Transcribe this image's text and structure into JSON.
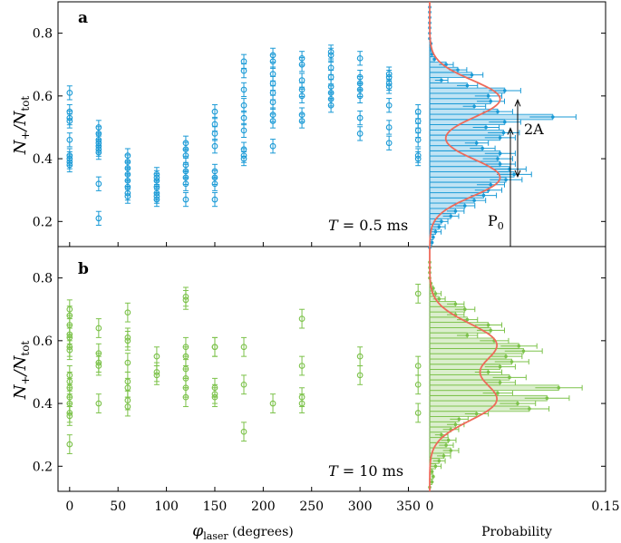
{
  "chart_data": [
    {
      "id": "a-scatter",
      "type": "scatter",
      "panel_label": "a",
      "annotation": {
        "prefix": "T",
        "text": " = 0.5 ms"
      },
      "ylabel": "N+/Ntot",
      "xlabel": "",
      "xlim": [
        -12,
        372
      ],
      "ylim": [
        0.12,
        0.9
      ],
      "yticks": [
        0.2,
        0.4,
        0.6,
        0.8
      ],
      "color": "#1a9ad6",
      "phases": [
        0,
        30,
        60,
        90,
        120,
        150,
        180,
        210,
        240,
        270,
        300,
        330,
        360
      ],
      "points": [
        [
          0,
          0.61
        ],
        [
          0,
          0.55
        ],
        [
          0,
          0.53
        ],
        [
          0,
          0.52
        ],
        [
          0,
          0.46
        ],
        [
          0,
          0.41
        ],
        [
          0,
          0.4
        ],
        [
          0,
          0.39
        ],
        [
          0,
          0.38
        ],
        [
          30,
          0.5
        ],
        [
          30,
          0.48
        ],
        [
          30,
          0.46
        ],
        [
          30,
          0.45
        ],
        [
          30,
          0.44
        ],
        [
          30,
          0.43
        ],
        [
          30,
          0.42
        ],
        [
          30,
          0.32
        ],
        [
          30,
          0.21
        ],
        [
          60,
          0.41
        ],
        [
          60,
          0.39
        ],
        [
          60,
          0.37
        ],
        [
          60,
          0.35
        ],
        [
          60,
          0.33
        ],
        [
          60,
          0.31
        ],
        [
          60,
          0.29
        ],
        [
          60,
          0.28
        ],
        [
          90,
          0.35
        ],
        [
          90,
          0.34
        ],
        [
          90,
          0.33
        ],
        [
          90,
          0.31
        ],
        [
          90,
          0.29
        ],
        [
          90,
          0.28
        ],
        [
          90,
          0.27
        ],
        [
          120,
          0.45
        ],
        [
          120,
          0.43
        ],
        [
          120,
          0.41
        ],
        [
          120,
          0.38
        ],
        [
          120,
          0.36
        ],
        [
          120,
          0.34
        ],
        [
          120,
          0.32
        ],
        [
          120,
          0.27
        ],
        [
          150,
          0.55
        ],
        [
          150,
          0.51
        ],
        [
          150,
          0.48
        ],
        [
          150,
          0.44
        ],
        [
          150,
          0.36
        ],
        [
          150,
          0.34
        ],
        [
          150,
          0.32
        ],
        [
          150,
          0.27
        ],
        [
          180,
          0.71
        ],
        [
          180,
          0.68
        ],
        [
          180,
          0.62
        ],
        [
          180,
          0.57
        ],
        [
          180,
          0.53
        ],
        [
          180,
          0.49
        ],
        [
          180,
          0.43
        ],
        [
          180,
          0.41
        ],
        [
          180,
          0.4
        ],
        [
          210,
          0.73
        ],
        [
          210,
          0.71
        ],
        [
          210,
          0.67
        ],
        [
          210,
          0.64
        ],
        [
          210,
          0.61
        ],
        [
          210,
          0.58
        ],
        [
          210,
          0.54
        ],
        [
          210,
          0.52
        ],
        [
          210,
          0.44
        ],
        [
          240,
          0.72
        ],
        [
          240,
          0.7
        ],
        [
          240,
          0.65
        ],
        [
          240,
          0.62
        ],
        [
          240,
          0.6
        ],
        [
          240,
          0.54
        ],
        [
          240,
          0.52
        ],
        [
          270,
          0.74
        ],
        [
          270,
          0.73
        ],
        [
          270,
          0.69
        ],
        [
          270,
          0.66
        ],
        [
          270,
          0.63
        ],
        [
          270,
          0.61
        ],
        [
          270,
          0.59
        ],
        [
          270,
          0.57
        ],
        [
          300,
          0.72
        ],
        [
          300,
          0.66
        ],
        [
          300,
          0.64
        ],
        [
          300,
          0.62
        ],
        [
          300,
          0.6
        ],
        [
          300,
          0.53
        ],
        [
          300,
          0.48
        ],
        [
          330,
          0.67
        ],
        [
          330,
          0.66
        ],
        [
          330,
          0.64
        ],
        [
          330,
          0.63
        ],
        [
          330,
          0.57
        ],
        [
          330,
          0.5
        ],
        [
          330,
          0.45
        ],
        [
          360,
          0.55
        ],
        [
          360,
          0.52
        ],
        [
          360,
          0.49
        ],
        [
          360,
          0.46
        ],
        [
          360,
          0.41
        ],
        [
          360,
          0.4
        ]
      ],
      "error": 0.022
    },
    {
      "id": "a-hist",
      "type": "bar",
      "orientation": "horizontal",
      "xlabel": "",
      "ylim": [
        0.12,
        0.9
      ],
      "xlim": [
        0,
        0.15
      ],
      "bin_width": 0.0167,
      "color": "#1a9ad6",
      "bins": [
        {
          "y": 0.117,
          "p": 0.0
        },
        {
          "y": 0.133,
          "p": 0.002
        },
        {
          "y": 0.15,
          "p": 0.003
        },
        {
          "y": 0.167,
          "p": 0.005
        },
        {
          "y": 0.183,
          "p": 0.008
        },
        {
          "y": 0.2,
          "p": 0.01
        },
        {
          "y": 0.217,
          "p": 0.018
        },
        {
          "y": 0.233,
          "p": 0.022
        },
        {
          "y": 0.25,
          "p": 0.03
        },
        {
          "y": 0.267,
          "p": 0.038
        },
        {
          "y": 0.283,
          "p": 0.046
        },
        {
          "y": 0.3,
          "p": 0.05
        },
        {
          "y": 0.317,
          "p": 0.052
        },
        {
          "y": 0.333,
          "p": 0.065
        },
        {
          "y": 0.35,
          "p": 0.072
        },
        {
          "y": 0.367,
          "p": 0.068
        },
        {
          "y": 0.383,
          "p": 0.06
        },
        {
          "y": 0.4,
          "p": 0.058
        },
        {
          "y": 0.417,
          "p": 0.06
        },
        {
          "y": 0.433,
          "p": 0.045
        },
        {
          "y": 0.45,
          "p": 0.04
        },
        {
          "y": 0.467,
          "p": 0.06
        },
        {
          "y": 0.483,
          "p": 0.063
        },
        {
          "y": 0.5,
          "p": 0.048
        },
        {
          "y": 0.517,
          "p": 0.064
        },
        {
          "y": 0.533,
          "p": 0.105
        },
        {
          "y": 0.55,
          "p": 0.058
        },
        {
          "y": 0.567,
          "p": 0.038
        },
        {
          "y": 0.583,
          "p": 0.052
        },
        {
          "y": 0.6,
          "p": 0.05
        },
        {
          "y": 0.617,
          "p": 0.064
        },
        {
          "y": 0.633,
          "p": 0.032
        },
        {
          "y": 0.65,
          "p": 0.01
        },
        {
          "y": 0.667,
          "p": 0.036
        },
        {
          "y": 0.683,
          "p": 0.024
        },
        {
          "y": 0.7,
          "p": 0.014
        },
        {
          "y": 0.717,
          "p": 0.004
        },
        {
          "y": 0.733,
          "p": 0.002
        },
        {
          "y": 0.75,
          "p": 0.001
        },
        {
          "y": 0.767,
          "p": 0.001
        },
        {
          "y": 0.783,
          "p": 0.0
        },
        {
          "y": 0.8,
          "p": 0.0
        },
        {
          "y": 0.817,
          "p": 0.0
        },
        {
          "y": 0.833,
          "p": 0.0
        },
        {
          "y": 0.85,
          "p": 0.0
        },
        {
          "y": 0.867,
          "p": 0.0
        },
        {
          "y": 0.883,
          "p": 0.0
        }
      ],
      "fit": {
        "P0": 0.465,
        "A": 0.125,
        "sigma": 0.06,
        "amp": 0.06
      },
      "annotations": {
        "p0_label": "P",
        "p0_sub": "0",
        "amp_label": "2A"
      }
    },
    {
      "id": "b-scatter",
      "type": "scatter",
      "panel_label": "b",
      "annotation": {
        "prefix": "T",
        "text": " = 10 ms"
      },
      "ylabel": "N+/Ntot",
      "xlabel": "φlaser (degrees)",
      "xlim": [
        -12,
        372
      ],
      "ylim": [
        0.12,
        0.9
      ],
      "yticks": [
        0.2,
        0.4,
        0.6,
        0.8
      ],
      "xticks": [
        0,
        50,
        100,
        150,
        200,
        250,
        300,
        350
      ],
      "color": "#7cc24a",
      "points": [
        [
          0,
          0.7
        ],
        [
          0,
          0.68
        ],
        [
          0,
          0.65
        ],
        [
          0,
          0.62
        ],
        [
          0,
          0.61
        ],
        [
          0,
          0.58
        ],
        [
          0,
          0.57
        ],
        [
          0,
          0.49
        ],
        [
          0,
          0.47
        ],
        [
          0,
          0.45
        ],
        [
          0,
          0.42
        ],
        [
          0,
          0.4
        ],
        [
          0,
          0.37
        ],
        [
          0,
          0.36
        ],
        [
          0,
          0.27
        ],
        [
          30,
          0.64
        ],
        [
          30,
          0.56
        ],
        [
          30,
          0.53
        ],
        [
          30,
          0.52
        ],
        [
          30,
          0.4
        ],
        [
          60,
          0.69
        ],
        [
          60,
          0.61
        ],
        [
          60,
          0.6
        ],
        [
          60,
          0.53
        ],
        [
          60,
          0.47
        ],
        [
          60,
          0.45
        ],
        [
          60,
          0.41
        ],
        [
          60,
          0.39
        ],
        [
          90,
          0.55
        ],
        [
          90,
          0.5
        ],
        [
          90,
          0.49
        ],
        [
          120,
          0.74
        ],
        [
          120,
          0.73
        ],
        [
          120,
          0.58
        ],
        [
          120,
          0.55
        ],
        [
          120,
          0.51
        ],
        [
          120,
          0.48
        ],
        [
          120,
          0.45
        ],
        [
          120,
          0.42
        ],
        [
          150,
          0.58
        ],
        [
          150,
          0.58
        ],
        [
          150,
          0.45
        ],
        [
          150,
          0.43
        ],
        [
          150,
          0.42
        ],
        [
          180,
          0.58
        ],
        [
          180,
          0.46
        ],
        [
          180,
          0.31
        ],
        [
          210,
          0.4
        ],
        [
          240,
          0.67
        ],
        [
          240,
          0.52
        ],
        [
          240,
          0.42
        ],
        [
          240,
          0.4
        ],
        [
          300,
          0.55
        ],
        [
          300,
          0.49
        ],
        [
          360,
          0.75
        ],
        [
          360,
          0.52
        ],
        [
          360,
          0.46
        ],
        [
          360,
          0.37
        ]
      ],
      "error": 0.03
    },
    {
      "id": "b-hist",
      "type": "bar",
      "orientation": "horizontal",
      "xlabel": "Probability",
      "ylim": [
        0.12,
        0.9
      ],
      "xlim": [
        0,
        0.15
      ],
      "xticks": [
        0,
        0.15
      ],
      "bin_width": 0.0167,
      "color": "#7cc24a",
      "bins": [
        {
          "y": 0.133,
          "p": 0.0
        },
        {
          "y": 0.15,
          "p": 0.002
        },
        {
          "y": 0.167,
          "p": 0.003
        },
        {
          "y": 0.183,
          "p": 0.002
        },
        {
          "y": 0.2,
          "p": 0.005
        },
        {
          "y": 0.217,
          "p": 0.008
        },
        {
          "y": 0.233,
          "p": 0.012
        },
        {
          "y": 0.25,
          "p": 0.018
        },
        {
          "y": 0.267,
          "p": 0.014
        },
        {
          "y": 0.283,
          "p": 0.016
        },
        {
          "y": 0.3,
          "p": 0.01
        },
        {
          "y": 0.317,
          "p": 0.018
        },
        {
          "y": 0.333,
          "p": 0.022
        },
        {
          "y": 0.35,
          "p": 0.025
        },
        {
          "y": 0.367,
          "p": 0.04
        },
        {
          "y": 0.383,
          "p": 0.085
        },
        {
          "y": 0.4,
          "p": 0.075
        },
        {
          "y": 0.417,
          "p": 0.1
        },
        {
          "y": 0.433,
          "p": 0.058
        },
        {
          "y": 0.45,
          "p": 0.11
        },
        {
          "y": 0.467,
          "p": 0.06
        },
        {
          "y": 0.483,
          "p": 0.068
        },
        {
          "y": 0.5,
          "p": 0.05
        },
        {
          "y": 0.517,
          "p": 0.06
        },
        {
          "y": 0.533,
          "p": 0.07
        },
        {
          "y": 0.55,
          "p": 0.065
        },
        {
          "y": 0.567,
          "p": 0.08
        },
        {
          "y": 0.583,
          "p": 0.076
        },
        {
          "y": 0.6,
          "p": 0.055
        },
        {
          "y": 0.617,
          "p": 0.032
        },
        {
          "y": 0.633,
          "p": 0.052
        },
        {
          "y": 0.65,
          "p": 0.05
        },
        {
          "y": 0.667,
          "p": 0.032
        },
        {
          "y": 0.683,
          "p": 0.022
        },
        {
          "y": 0.7,
          "p": 0.03
        },
        {
          "y": 0.717,
          "p": 0.022
        },
        {
          "y": 0.733,
          "p": 0.008
        },
        {
          "y": 0.75,
          "p": 0.005
        },
        {
          "y": 0.767,
          "p": 0.003
        },
        {
          "y": 0.783,
          "p": 0.001
        },
        {
          "y": 0.8,
          "p": 0.0
        },
        {
          "y": 0.817,
          "p": 0.0
        },
        {
          "y": 0.833,
          "p": 0.0
        },
        {
          "y": 0.85,
          "p": 0.0
        }
      ],
      "fit": {
        "P0": 0.5,
        "A": 0.09,
        "sigma": 0.065,
        "amp": 0.056
      }
    }
  ],
  "labels": {
    "ylabel_N": "N",
    "ylabel_plus": "+",
    "ylabel_slash": "/N",
    "ylabel_tot": "tot",
    "xlabel_phi": "φ",
    "xlabel_sub": "laser",
    "xlabel_rest": " (degrees)",
    "xlabel_hist": "Probability"
  },
  "colors": {
    "fit": "#ee6a5a",
    "blue": "#1a9ad6",
    "green": "#7cc24a"
  }
}
